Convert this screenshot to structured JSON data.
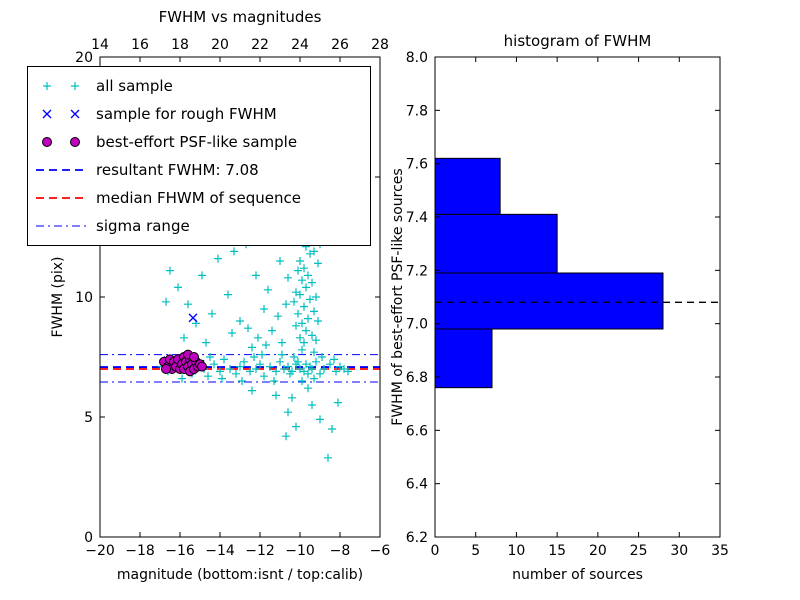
{
  "chart_data": [
    {
      "type": "scatter",
      "title": "FWHM vs magnitudes",
      "xlabel": "magnitude (bottom:isnt / top:calib)",
      "ylabel": "FWHM (pix)",
      "xlim": [
        -20,
        -6
      ],
      "ylim": [
        0,
        20
      ],
      "x_ticks": [
        -20,
        -18,
        -16,
        -14,
        -12,
        -10,
        -8,
        -6
      ],
      "x_tick_labels": [
        "−20",
        "−18",
        "−16",
        "−14",
        "−12",
        "−10",
        "−8",
        "−6"
      ],
      "top_tick_labels": [
        "14",
        "16",
        "18",
        "20",
        "22",
        "24",
        "26",
        "28"
      ],
      "y_ticks": [
        0,
        5,
        10,
        15,
        20
      ],
      "y_tick_labels": [
        "0",
        "5",
        "10",
        "15",
        "20"
      ],
      "series": [
        {
          "name": "all sample",
          "marker": "plus",
          "color": "#00bfbf",
          "points": [
            [
              -16.9,
              7.1
            ],
            [
              -16.6,
              6.9
            ],
            [
              -16.3,
              7.2
            ],
            [
              -16.0,
              7.0
            ],
            [
              -15.7,
              7.3
            ],
            [
              -15.4,
              6.8
            ],
            [
              -15.1,
              7.1
            ],
            [
              -14.8,
              7.0
            ],
            [
              -14.6,
              6.7
            ],
            [
              -14.3,
              7.2
            ],
            [
              -14.0,
              6.9
            ],
            [
              -13.8,
              7.4
            ],
            [
              -13.5,
              7.0
            ],
            [
              -13.2,
              6.8
            ],
            [
              -13.0,
              7.1
            ],
            [
              -12.8,
              7.3
            ],
            [
              -12.5,
              6.9
            ],
            [
              -12.2,
              7.0
            ],
            [
              -12.0,
              7.2
            ],
            [
              -11.8,
              6.7
            ],
            [
              -11.5,
              7.1
            ],
            [
              -11.2,
              6.9
            ],
            [
              -11.0,
              7.3
            ],
            [
              -10.8,
              7.0
            ],
            [
              -10.5,
              6.8
            ],
            [
              -10.2,
              7.2
            ],
            [
              -10.0,
              7.0
            ],
            [
              -9.8,
              6.9
            ],
            [
              -9.5,
              7.1
            ],
            [
              -9.2,
              7.3
            ],
            [
              -9.0,
              6.8
            ],
            [
              -8.8,
              7.0
            ],
            [
              -8.5,
              7.2
            ],
            [
              -8.2,
              6.9
            ],
            [
              -8.0,
              7.1
            ],
            [
              -7.8,
              7.0
            ],
            [
              -13.9,
              6.6
            ],
            [
              -12.3,
              7.5
            ],
            [
              -11.3,
              6.5
            ],
            [
              -10.3,
              7.5
            ],
            [
              -9.3,
              6.6
            ],
            [
              -8.3,
              7.4
            ],
            [
              -14.5,
              7.5
            ],
            [
              -15.9,
              6.6
            ],
            [
              -12.9,
              6.5
            ],
            [
              -11.9,
              7.6
            ],
            [
              -10.9,
              7.6
            ],
            [
              -9.9,
              6.5
            ],
            [
              -8.9,
              7.5
            ],
            [
              -7.6,
              6.9
            ],
            [
              -10.6,
              7.1
            ],
            [
              -10.4,
              6.9
            ],
            [
              -10.1,
              7.3
            ],
            [
              -9.7,
              7.2
            ],
            [
              -9.6,
              6.8
            ],
            [
              -9.4,
              7.0
            ],
            [
              -9.9,
              7.8
            ],
            [
              -9.8,
              8.1
            ],
            [
              -10.0,
              8.3
            ],
            [
              -9.7,
              8.6
            ],
            [
              -9.9,
              8.9
            ],
            [
              -9.6,
              9.1
            ],
            [
              -10.1,
              9.3
            ],
            [
              -9.8,
              9.6
            ],
            [
              -9.5,
              9.9
            ],
            [
              -10.0,
              10.1
            ],
            [
              -9.7,
              10.4
            ],
            [
              -9.9,
              10.7
            ],
            [
              -9.6,
              10.9
            ],
            [
              -9.8,
              11.2
            ],
            [
              -10.0,
              11.5
            ],
            [
              -9.5,
              11.8
            ],
            [
              -9.7,
              12.1
            ],
            [
              -9.9,
              12.4
            ],
            [
              -9.6,
              12.7
            ],
            [
              -9.8,
              13.0
            ],
            [
              -9.4,
              8.4
            ],
            [
              -9.3,
              9.4
            ],
            [
              -9.4,
              10.6
            ],
            [
              -9.3,
              11.9
            ],
            [
              -10.2,
              8.8
            ],
            [
              -10.2,
              10.2
            ],
            [
              -10.1,
              11.1
            ],
            [
              -10.3,
              9.8
            ],
            [
              -9.2,
              8.2
            ],
            [
              -9.1,
              9.0
            ],
            [
              -9.2,
              10.0
            ],
            [
              -9.1,
              11.4
            ],
            [
              -9.0,
              12.2
            ],
            [
              -9.5,
              12.9
            ],
            [
              -9.3,
              7.7
            ],
            [
              -9.2,
              12.5
            ],
            [
              -12.4,
              7.9
            ],
            [
              -12.1,
              8.3
            ],
            [
              -11.7,
              8.0
            ],
            [
              -11.4,
              8.6
            ],
            [
              -11.1,
              9.2
            ],
            [
              -10.9,
              8.1
            ],
            [
              -10.7,
              9.7
            ],
            [
              -11.6,
              10.3
            ],
            [
              -12.2,
              10.9
            ],
            [
              -11.0,
              11.5
            ],
            [
              -10.6,
              10.8
            ],
            [
              -11.8,
              9.5
            ],
            [
              -12.6,
              8.7
            ],
            [
              -16.5,
              11.1
            ],
            [
              -16.1,
              10.4
            ],
            [
              -15.6,
              9.7
            ],
            [
              -15.2,
              8.9
            ],
            [
              -14.9,
              10.9
            ],
            [
              -14.4,
              9.3
            ],
            [
              -14.1,
              11.6
            ],
            [
              -13.6,
              10.1
            ],
            [
              -13.3,
              11.9
            ],
            [
              -13.0,
              9.0
            ],
            [
              -15.8,
              8.3
            ],
            [
              -16.7,
              9.8
            ],
            [
              -14.7,
              8.1
            ],
            [
              -13.4,
              8.5
            ],
            [
              -13.7,
              12.4
            ],
            [
              -12.7,
              12.2
            ],
            [
              -10.4,
              5.8
            ],
            [
              -10.6,
              5.2
            ],
            [
              -10.2,
              4.6
            ],
            [
              -10.7,
              4.2
            ],
            [
              -9.4,
              5.5
            ],
            [
              -8.6,
              3.3
            ],
            [
              -9.0,
              4.9
            ],
            [
              -11.2,
              5.9
            ],
            [
              -8.1,
              5.6
            ],
            [
              -9.6,
              6.2
            ],
            [
              -12.4,
              6.1
            ],
            [
              -8.4,
              4.5
            ]
          ]
        },
        {
          "name": "sample for rough FWHM",
          "marker": "x",
          "color": "#0000ff",
          "points": [
            [
              -15.35,
              9.13
            ],
            [
              -16.6,
              7.35
            ],
            [
              -16.1,
              7.15
            ],
            [
              -15.7,
              7.25
            ],
            [
              -15.3,
              7.05
            ],
            [
              -15.0,
              7.2
            ]
          ]
        },
        {
          "name": "best-effort PSF-like sample",
          "marker": "circle",
          "color": "#bf00bf",
          "points": [
            [
              -16.8,
              7.3
            ],
            [
              -16.6,
              7.1
            ],
            [
              -16.5,
              7.4
            ],
            [
              -16.4,
              7.0
            ],
            [
              -16.3,
              7.3
            ],
            [
              -16.2,
              7.1
            ],
            [
              -16.1,
              7.4
            ],
            [
              -16.0,
              7.0
            ],
            [
              -15.9,
              7.2
            ],
            [
              -15.8,
              7.5
            ],
            [
              -15.8,
              7.0
            ],
            [
              -15.7,
              7.3
            ],
            [
              -15.6,
              7.1
            ],
            [
              -15.5,
              7.4
            ],
            [
              -15.5,
              6.9
            ],
            [
              -15.4,
              7.2
            ],
            [
              -15.3,
              7.0
            ],
            [
              -15.2,
              7.3
            ],
            [
              -15.1,
              7.1
            ],
            [
              -15.0,
              7.2
            ],
            [
              -16.7,
              7.0
            ],
            [
              -15.6,
              7.6
            ],
            [
              -15.3,
              7.5
            ],
            [
              -14.9,
              7.1
            ]
          ]
        }
      ],
      "lines": [
        {
          "label": "resultant FWHM: 7.08",
          "y": 7.08,
          "color": "#0000ff",
          "style": "dashed"
        },
        {
          "label": "median FHWM of sequence",
          "y": 7.0,
          "color": "#ff0000",
          "style": "dashed"
        },
        {
          "label": "sigma range",
          "y": [
            6.46,
            7.6
          ],
          "color": "#0000ff",
          "style": "dashdot"
        }
      ],
      "legend": [
        {
          "label": "all sample",
          "marker": "plus",
          "color": "#00bfbf"
        },
        {
          "label": "sample for rough FWHM",
          "marker": "x",
          "color": "#0000ff"
        },
        {
          "label": "best-effort PSF-like sample",
          "marker": "circle",
          "color": "#bf00bf"
        },
        {
          "label": "resultant FWHM: 7.08",
          "marker": "dashed-line",
          "color": "#0000ff"
        },
        {
          "label": "median FHWM of sequence",
          "marker": "dashed-line",
          "color": "#ff0000"
        },
        {
          "label": "sigma range",
          "marker": "dashdot-line",
          "color": "#0000ff"
        }
      ]
    },
    {
      "type": "bar",
      "orientation": "horizontal",
      "title": "histogram of FWHM",
      "xlabel": "number of sources",
      "ylabel": "FWHM of best-effort PSF-like sources",
      "xlim": [
        0,
        35
      ],
      "ylim": [
        6.2,
        8.0
      ],
      "x_ticks": [
        0,
        5,
        10,
        15,
        20,
        25,
        30,
        35
      ],
      "x_tick_labels": [
        "0",
        "5",
        "10",
        "15",
        "20",
        "25",
        "30",
        "35"
      ],
      "y_ticks": [
        6.2,
        6.4,
        6.6,
        6.8,
        7.0,
        7.2,
        7.4,
        7.6,
        7.8,
        8.0
      ],
      "y_tick_labels": [
        "6.2",
        "6.4",
        "6.6",
        "6.8",
        "7.0",
        "7.2",
        "7.4",
        "7.6",
        "7.8",
        "8.0"
      ],
      "bin_edges": [
        6.76,
        6.98,
        7.19,
        7.41,
        7.62
      ],
      "counts": [
        7,
        28,
        15,
        8
      ],
      "bar_color": "#0000ff",
      "marker_line": {
        "y": 7.08,
        "color": "#000000",
        "style": "dashed"
      }
    }
  ]
}
